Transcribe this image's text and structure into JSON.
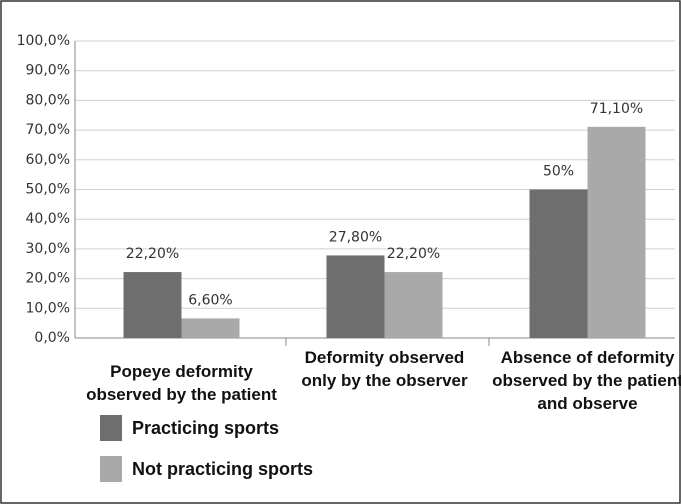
{
  "chart_data": {
    "type": "bar",
    "categories": [
      "Popeye deformity observed by the patient",
      "Deformity observed only by the observer",
      "Absence of deformity observed by the patient and observe"
    ],
    "series": [
      {
        "name": "Practicing sports",
        "color": "#6e6e6e",
        "values": [
          22.2,
          27.8,
          50
        ],
        "value_labels": [
          "22,20%",
          "27,80%",
          "50%"
        ]
      },
      {
        "name": "Not practicing sports",
        "color": "#a9a9a9",
        "values": [
          6.6,
          22.2,
          71.1
        ],
        "value_labels": [
          "6,60%",
          "22,20%",
          "71,10%"
        ]
      }
    ],
    "ylim": [
      0,
      100
    ],
    "yticks": [
      {
        "value": 0,
        "label": "0,0%"
      },
      {
        "value": 10,
        "label": "10,0%"
      },
      {
        "value": 20,
        "label": "20,0%"
      },
      {
        "value": 30,
        "label": "30,0%"
      },
      {
        "value": 40,
        "label": "40,0%"
      },
      {
        "value": 50,
        "label": "50,0%"
      },
      {
        "value": 60,
        "label": "60,0%"
      },
      {
        "value": 70,
        "label": "70,0%"
      },
      {
        "value": 80,
        "label": "80,0%"
      },
      {
        "value": 90,
        "label": "90,0%"
      },
      {
        "value": 100,
        "label": "100,0%"
      }
    ],
    "grid": true
  }
}
